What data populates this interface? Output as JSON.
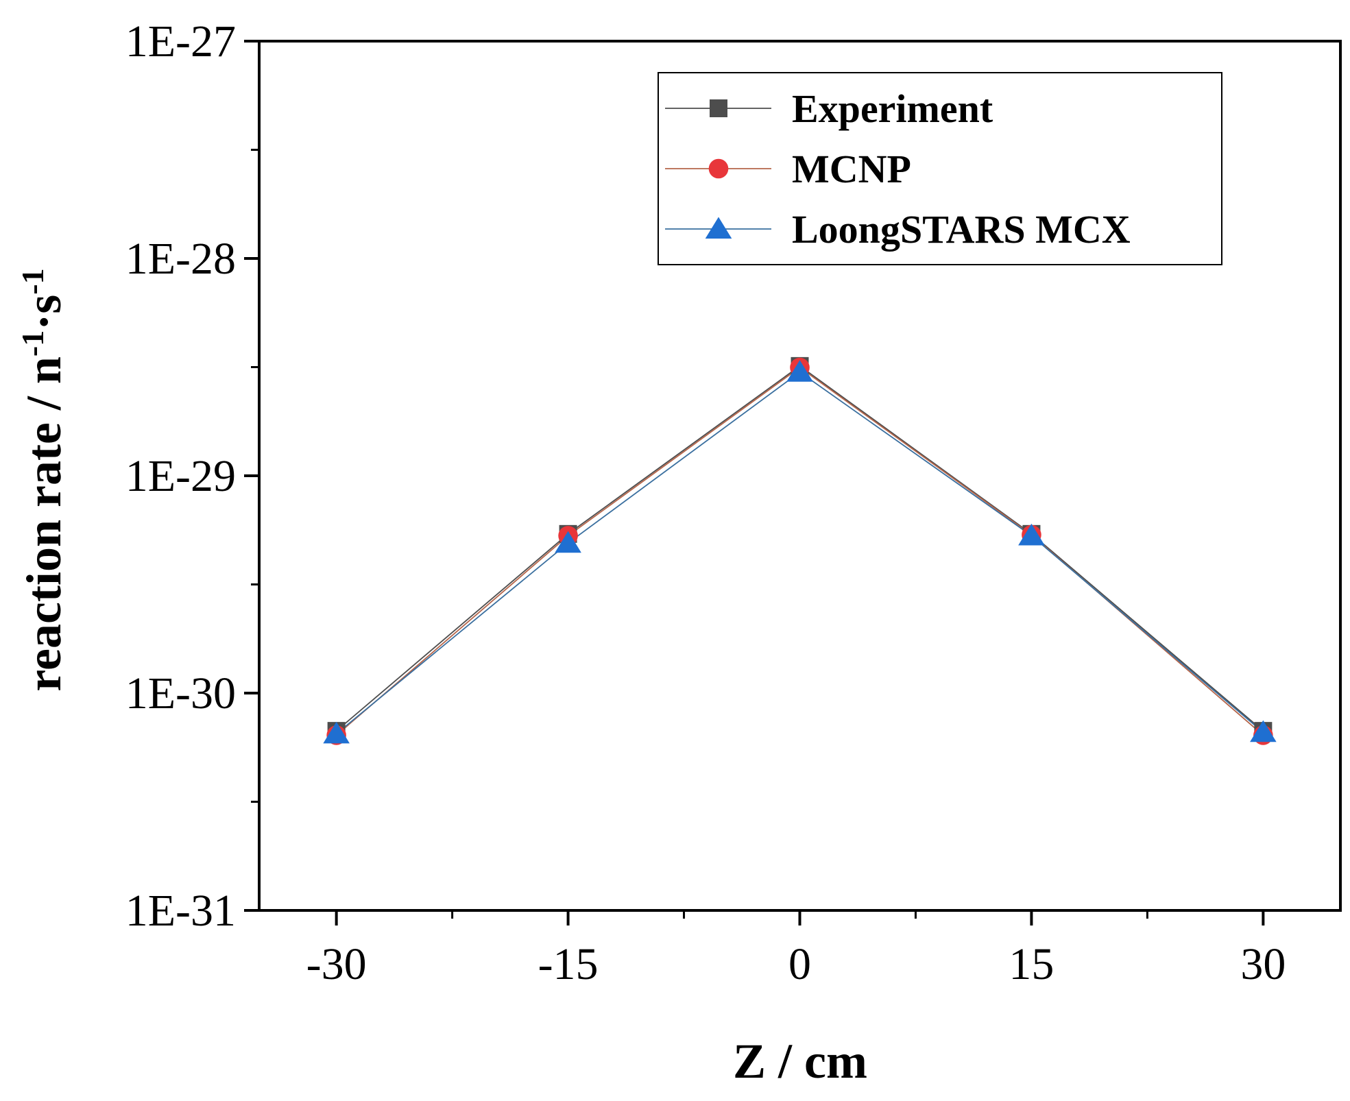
{
  "chart_data": {
    "type": "line",
    "title": "",
    "xlabel": "Z / cm",
    "ylabel": {
      "base": "reaction rate / n",
      "exp1": "-1",
      "mid": "·s",
      "exp2": "-1"
    },
    "x": [
      -30,
      -15,
      0,
      15,
      30
    ],
    "xlim": [
      -35,
      35
    ],
    "x_ticks": [
      -30,
      -15,
      0,
      15,
      30
    ],
    "x_tick_labels": [
      "-30",
      "-15",
      "0",
      "15",
      "30"
    ],
    "y_scale": "log",
    "ylim": [
      1e-31,
      1e-27
    ],
    "y_ticks": [
      1e-31,
      1e-30,
      1e-29,
      1e-28,
      1e-27
    ],
    "y_tick_labels": [
      "1E-31",
      "1E-30",
      "1E-29",
      "1E-28",
      "1E-27"
    ],
    "grid": false,
    "legend_position": "top-right",
    "series": [
      {
        "name": "Experiment",
        "marker": "square",
        "color": "#4d4d4d",
        "values": [
          6.7e-31,
          5.4e-30,
          3.2e-29,
          5.4e-30,
          6.7e-31
        ]
      },
      {
        "name": "MCNP",
        "marker": "circle",
        "color": "#e8363a",
        "line_color": "#b5654a",
        "values": [
          6.4e-31,
          5.3e-30,
          3.15e-29,
          5.35e-30,
          6.4e-31
        ]
      },
      {
        "name": "LoongSTARS MCX",
        "marker": "triangle",
        "color": "#1f6fd1",
        "line_color": "#3a6f9f",
        "values": [
          6.5e-31,
          4.9e-30,
          3e-29,
          5.3e-30,
          6.6e-31
        ]
      }
    ]
  }
}
